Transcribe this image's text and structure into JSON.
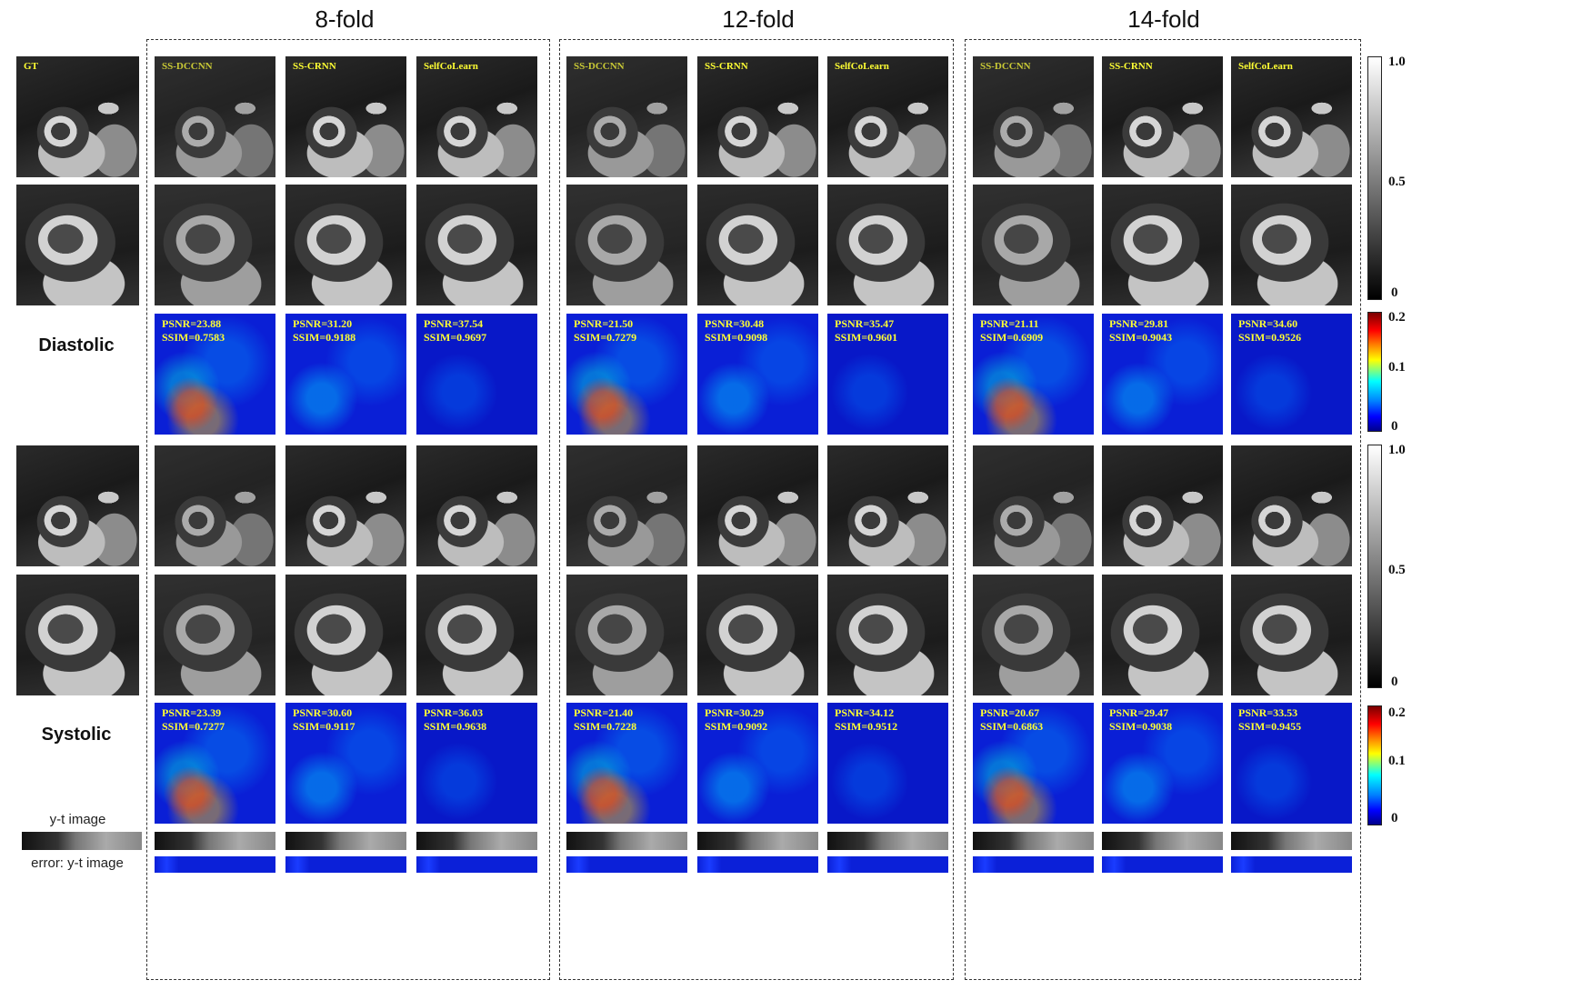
{
  "folds": [
    "8-fold",
    "12-fold",
    "14-fold"
  ],
  "gt_label": "GT",
  "methods": [
    "SS-DCCNN",
    "SS-CRNN",
    "SelfCoLearn"
  ],
  "row_labels": {
    "diastolic": "Diastolic",
    "systolic": "Systolic"
  },
  "yt_label": "y-t image",
  "yt_error_label": "error: y-t image",
  "metrics": {
    "diastolic": [
      [
        [
          "PSNR=23.88",
          "SSIM=0.7583"
        ],
        [
          "PSNR=31.20",
          "SSIM=0.9188"
        ],
        [
          "PSNR=37.54",
          "SSIM=0.9697"
        ]
      ],
      [
        [
          "PSNR=21.50",
          "SSIM=0.7279"
        ],
        [
          "PSNR=30.48",
          "SSIM=0.9098"
        ],
        [
          "PSNR=35.47",
          "SSIM=0.9601"
        ]
      ],
      [
        [
          "PSNR=21.11",
          "SSIM=0.6909"
        ],
        [
          "PSNR=29.81",
          "SSIM=0.9043"
        ],
        [
          "PSNR=34.60",
          "SSIM=0.9526"
        ]
      ]
    ],
    "systolic": [
      [
        [
          "PSNR=23.39",
          "SSIM=0.7277"
        ],
        [
          "PSNR=30.60",
          "SSIM=0.9117"
        ],
        [
          "PSNR=36.03",
          "SSIM=0.9638"
        ]
      ],
      [
        [
          "PSNR=21.40",
          "SSIM=0.7228"
        ],
        [
          "PSNR=30.29",
          "SSIM=0.9092"
        ],
        [
          "PSNR=34.12",
          "SSIM=0.9512"
        ]
      ],
      [
        [
          "PSNR=20.67",
          "SSIM=0.6863"
        ],
        [
          "PSNR=29.47",
          "SSIM=0.9038"
        ],
        [
          "PSNR=33.53",
          "SSIM=0.9455"
        ]
      ]
    ]
  },
  "colorbars": {
    "gray_ticks": [
      "1.0",
      "0.5",
      "0"
    ],
    "error_ticks": [
      "0.2",
      "0.1",
      "0"
    ]
  }
}
